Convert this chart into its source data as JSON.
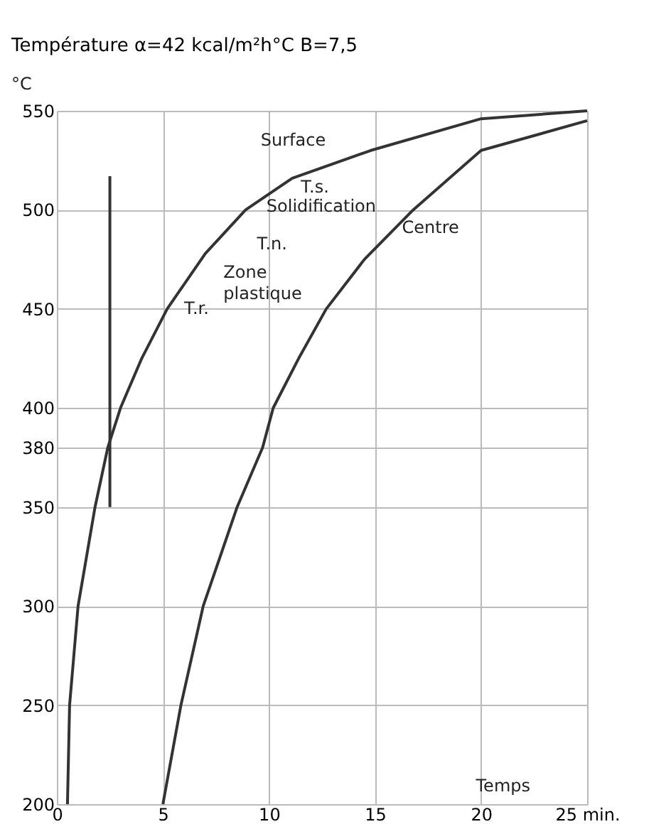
{
  "chart_data": {
    "type": "line",
    "title": "Température α=42 kcal/m²h°C  B=7,5",
    "xlabel": "Temps",
    "ylabel": "°C",
    "xlim": [
      0,
      25
    ],
    "ylim": [
      200,
      550
    ],
    "xticks": [
      0,
      5,
      10,
      15,
      20,
      {
        "value": 25,
        "label": "25 min."
      }
    ],
    "yticks": [
      200,
      250,
      300,
      350,
      380,
      400,
      450,
      500,
      550
    ],
    "grid": true,
    "line_style": "solid",
    "series": [
      {
        "color": "#333333",
        "x": [
          0.5,
          0.6,
          1.0,
          1.8,
          2.4,
          3.0,
          4.0,
          5.2,
          7.0,
          8.9,
          11.1,
          14.8,
          20,
          25
        ],
        "values": [
          200,
          250,
          300,
          350,
          380,
          400,
          425,
          450,
          478,
          500,
          516,
          530,
          546,
          550
        ]
      },
      {
        "color": "#333333",
        "x": [
          5,
          5.85,
          6.9,
          8.5,
          9.7,
          10.2,
          11.4,
          12.7,
          14.5,
          16.8,
          20,
          25
        ],
        "values": [
          200,
          250,
          300,
          350,
          380,
          400,
          425,
          450,
          475,
          500,
          530,
          545
        ]
      },
      {
        "color": "#333333",
        "x": [
          2.5,
          2.5
        ],
        "values": [
          350,
          517
        ]
      }
    ],
    "annotations": [
      {
        "text": "Surface",
        "x": 14.3,
        "y": 528
      },
      {
        "text": "T.s.",
        "x": 11.1,
        "y": 516
      },
      "Solidification",
      {
        "text": "T.n.",
        "x": 8.9,
        "y": 500
      },
      "Zone plastique",
      {
        "text": "T.r.",
        "x": 5.6,
        "y": 456
      },
      {
        "text": "Centre",
        "x": 15.6,
        "y": 487
      }
    ]
  }
}
